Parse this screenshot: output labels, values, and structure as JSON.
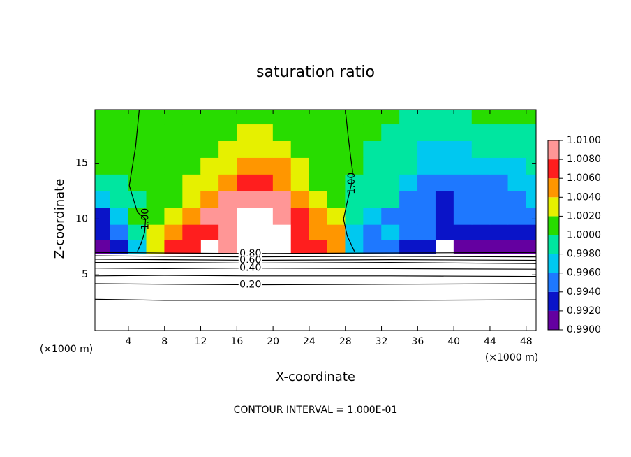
{
  "chart_data": {
    "type": "contour",
    "title": "saturation ratio",
    "x_label": "X-coordinate",
    "y_label": "Z-coordinate",
    "x_unit_left": "(×1000 m)",
    "x_unit_right": "(×1000 m)",
    "footer": "CONTOUR INTERVAL = 1.000E-01",
    "xlim": [
      0.3,
      49.1
    ],
    "ylim": [
      0,
      19.8
    ],
    "xticks": [
      4,
      8,
      12,
      16,
      20,
      24,
      28,
      32,
      36,
      40,
      44,
      48
    ],
    "yticks": [
      5,
      10,
      15
    ],
    "x": [
      1,
      3,
      5,
      7,
      9,
      11,
      13,
      15,
      17,
      19,
      21,
      23,
      25,
      27,
      29,
      31,
      33,
      35,
      37,
      39,
      41,
      43,
      45,
      47,
      49
    ],
    "y": [
      7.5,
      8.75,
      10.25,
      11.75,
      13.25,
      14.75,
      16.25,
      17.75,
      19.25
    ],
    "z": [
      [
        0.991,
        0.992,
        0.997,
        1.003,
        1.006,
        1.007,
        null,
        1.008,
        null,
        null,
        null,
        1.007,
        1.006,
        1.005,
        0.996,
        0.994,
        0.995,
        0.993,
        0.992,
        null,
        0.991,
        0.991,
        0.991,
        0.991,
        0.991
      ],
      [
        0.992,
        0.995,
        0.999,
        1.002,
        1.005,
        1.007,
        1.007,
        1.008,
        null,
        null,
        null,
        1.007,
        1.005,
        1.005,
        0.997,
        0.995,
        0.996,
        0.994,
        0.994,
        0.992,
        0.992,
        0.993,
        0.993,
        0.993,
        0.993
      ],
      [
        0.993,
        0.996,
        1.0,
        1.001,
        1.003,
        1.005,
        1.008,
        1.009,
        null,
        null,
        1.008,
        1.007,
        1.005,
        1.003,
        0.999,
        0.997,
        0.994,
        0.994,
        0.994,
        0.992,
        0.994,
        0.994,
        0.994,
        0.994,
        0.995
      ],
      [
        0.996,
        0.998,
        0.999,
        1.001,
        1.001,
        1.003,
        1.005,
        1.008,
        1.009,
        1.009,
        1.008,
        1.005,
        1.003,
        1.001,
        0.999,
        0.998,
        0.998,
        0.994,
        0.994,
        0.993,
        0.994,
        0.994,
        0.994,
        0.995,
        0.996
      ],
      [
        0.999,
        0.999,
        1.0,
        1.001,
        1.001,
        1.002,
        1.003,
        1.005,
        1.007,
        1.007,
        1.005,
        1.003,
        1.001,
        1.001,
        0.999,
        0.999,
        0.998,
        0.996,
        0.995,
        0.995,
        0.995,
        0.995,
        0.995,
        0.996,
        0.997
      ],
      [
        1.001,
        1.001,
        1.0,
        1.001,
        1.001,
        1.001,
        1.002,
        1.003,
        1.005,
        1.005,
        1.004,
        1.002,
        1.001,
        1.001,
        1.0,
        0.999,
        0.999,
        0.998,
        0.996,
        0.996,
        0.996,
        0.996,
        0.997,
        0.997,
        0.998
      ],
      [
        1.001,
        1.001,
        1.001,
        1.001,
        1.001,
        1.001,
        1.001,
        1.002,
        1.003,
        1.003,
        1.002,
        1.001,
        1.001,
        1.001,
        1.0,
        0.999,
        0.999,
        0.999,
        0.997,
        0.997,
        0.997,
        0.998,
        0.998,
        0.998,
        0.999
      ],
      [
        1.001,
        1.001,
        1.001,
        1.001,
        1.001,
        1.001,
        1.001,
        1.001,
        1.002,
        1.002,
        1.001,
        1.001,
        1.001,
        1.001,
        1.001,
        1.0,
        0.999,
        0.999,
        0.998,
        0.998,
        0.998,
        0.999,
        0.999,
        0.999,
        0.999
      ],
      [
        1.001,
        1.001,
        1.001,
        1.001,
        1.001,
        1.001,
        1.001,
        1.001,
        1.001,
        1.001,
        1.001,
        1.001,
        1.001,
        1.001,
        1.001,
        1.001,
        1.0,
        0.999,
        0.999,
        0.999,
        0.999,
        1.0,
        1.001,
        1.001,
        1.001
      ]
    ],
    "levels": [
      {
        "value": 0.99,
        "label": "0.9900"
      },
      {
        "value": 0.992,
        "label": "0.9920"
      },
      {
        "value": 0.994,
        "label": "0.9940"
      },
      {
        "value": 0.996,
        "label": "0.9960"
      },
      {
        "value": 0.998,
        "label": "0.9980"
      },
      {
        "value": 1.0,
        "label": "1.0000"
      },
      {
        "value": 1.002,
        "label": "1.0020"
      },
      {
        "value": 1.004,
        "label": "1.0040"
      },
      {
        "value": 1.006,
        "label": "1.0060"
      },
      {
        "value": 1.008,
        "label": "1.0080"
      },
      {
        "value": 1.01,
        "label": "1.0100"
      }
    ],
    "colors": [
      "#6400a0",
      "#0a14c8",
      "#1e78ff",
      "#00c8f0",
      "#00e6a0",
      "#28dc00",
      "#e6f000",
      "#ff9600",
      "#ff1e1e",
      "#ff9696"
    ],
    "contours": [
      {
        "level": {
          "value": 1.0,
          "label": "1.00"
        },
        "x": [
          5.2,
          4.8,
          4.1,
          5.0,
          5.9,
          5.8,
          5.4,
          5.0
        ],
        "y": [
          19.8,
          16.5,
          13,
          10.6,
          10.0,
          8.8,
          7.8,
          7.1
        ]
      },
      {
        "level": {
          "value": 1.0,
          "label": "1.00"
        },
        "x": [
          28.0,
          28.3,
          28.6,
          28.8,
          28.7,
          28.2,
          27.8,
          28.2,
          29.0
        ],
        "y": [
          19.8,
          17.5,
          15.5,
          14.3,
          13.2,
          11.5,
          10,
          8.5,
          7.1
        ]
      },
      {
        "level": {
          "value": 0.8,
          "label": "0.80"
        },
        "x": [
          0.3,
          8,
          17.5,
          33,
          49.1
        ],
        "y": [
          7.0,
          6.95,
          6.9,
          6.95,
          7.0
        ]
      },
      {
        "level": 0.7,
        "x": [
          0.3,
          8,
          17.5,
          33,
          49.1
        ],
        "y": [
          6.7,
          6.65,
          6.6,
          6.65,
          6.6
        ]
      },
      {
        "level": {
          "value": 0.6,
          "label": "0.60"
        },
        "x": [
          0.3,
          8,
          17.5,
          33,
          49.1
        ],
        "y": [
          6.4,
          6.35,
          6.3,
          6.35,
          6.3
        ]
      },
      {
        "level": 0.5,
        "x": [
          0.3,
          8,
          17.5,
          33,
          49.1
        ],
        "y": [
          6.1,
          6.1,
          6.05,
          6.1,
          6.0
        ]
      },
      {
        "level": {
          "value": 0.4,
          "label": "0.40"
        },
        "x": [
          0.3,
          8,
          17.5,
          33,
          49.1
        ],
        "y": [
          5.6,
          5.55,
          5.6,
          5.55,
          5.5
        ]
      },
      {
        "level": 0.3,
        "x": [
          0.3,
          8,
          17.5,
          33,
          49.1
        ],
        "y": [
          4.9,
          4.95,
          4.9,
          4.9,
          4.85
        ]
      },
      {
        "level": {
          "value": 0.2,
          "label": "0.20"
        },
        "x": [
          0.3,
          8,
          17.5,
          33,
          49.1
        ],
        "y": [
          4.2,
          4.15,
          4.1,
          4.15,
          4.2
        ]
      },
      {
        "level": 0.1,
        "x": [
          0.3,
          8,
          17.5,
          33,
          49.1
        ],
        "y": [
          2.8,
          2.7,
          2.7,
          2.7,
          2.75
        ]
      }
    ]
  }
}
